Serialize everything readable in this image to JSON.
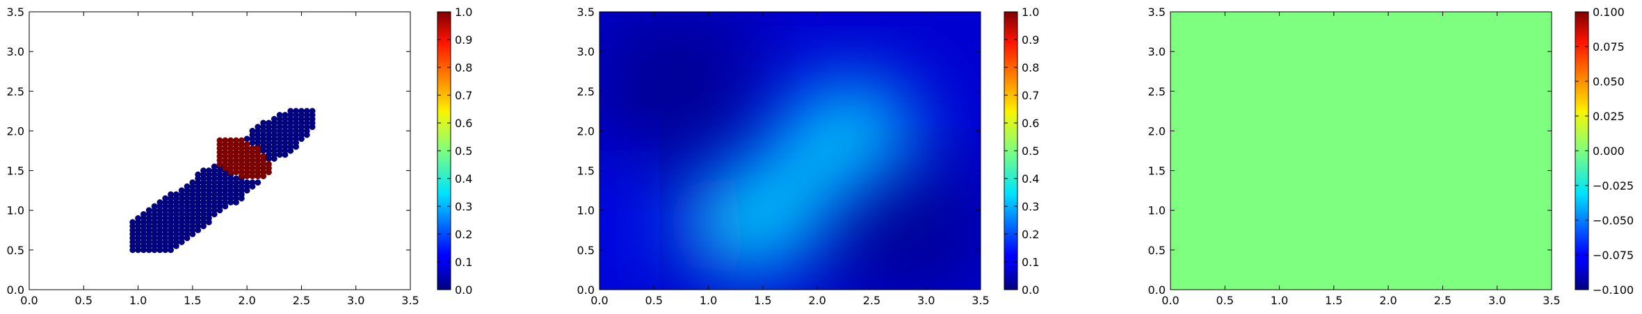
{
  "chart_data": [
    {
      "type": "scatter",
      "xlim": [
        0,
        3.5
      ],
      "ylim": [
        0,
        3.5
      ],
      "xticks": [
        "0.0",
        "0.5",
        "1.0",
        "1.5",
        "2.0",
        "2.5",
        "3.0",
        "3.5"
      ],
      "yticks": [
        "0.0",
        "0.5",
        "1.0",
        "1.5",
        "2.0",
        "2.5",
        "3.0",
        "3.5"
      ],
      "colorbar": {
        "range": [
          0,
          1
        ],
        "ticks": [
          "0.0",
          "0.1",
          "0.2",
          "0.3",
          "0.4",
          "0.5",
          "0.6",
          "0.7",
          "0.8",
          "0.9",
          "1.0"
        ],
        "colormap": "jet"
      },
      "groups": [
        {
          "value": 0.0,
          "description": "blue points",
          "region": {
            "x": [
              0.95,
              2.6
            ],
            "y": [
              0.5,
              2.35
            ],
            "shape": "elongated diagonal band"
          }
        },
        {
          "value": 1.0,
          "description": "red points",
          "region": {
            "x": [
              1.7,
              2.25
            ],
            "y": [
              1.4,
              1.9
            ],
            "shape": "small cluster"
          }
        }
      ]
    },
    {
      "type": "heatmap",
      "xlim": [
        0,
        3.5
      ],
      "ylim": [
        0,
        3.5
      ],
      "xticks": [
        "0.0",
        "0.5",
        "1.0",
        "1.5",
        "2.0",
        "2.5",
        "3.0",
        "3.5"
      ],
      "yticks": [
        "0.0",
        "0.5",
        "1.0",
        "1.5",
        "2.0",
        "2.5",
        "3.0",
        "3.5"
      ],
      "colorbar": {
        "range": [
          0,
          1
        ],
        "ticks": [
          "0.0",
          "0.1",
          "0.2",
          "0.3",
          "0.4",
          "0.5",
          "0.6",
          "0.7",
          "0.8",
          "0.9",
          "1.0"
        ],
        "colormap": "jet"
      },
      "peaks": [
        {
          "x": 1.4,
          "y": 0.85,
          "value": 0.4
        },
        {
          "x": 2.3,
          "y": 2.0,
          "value": 0.33
        }
      ],
      "background_value": 0.08
    },
    {
      "type": "heatmap",
      "xlim": [
        0,
        3.5
      ],
      "ylim": [
        0,
        3.5
      ],
      "xticks": [
        "0.0",
        "0.5",
        "1.0",
        "1.5",
        "2.0",
        "2.5",
        "3.0",
        "3.5"
      ],
      "yticks": [
        "0.0",
        "0.5",
        "1.0",
        "1.5",
        "2.0",
        "2.5",
        "3.0",
        "3.5"
      ],
      "colorbar": {
        "range": [
          -0.1,
          0.1
        ],
        "ticks": [
          "−0.100",
          "−0.075",
          "−0.050",
          "−0.025",
          "0.000",
          "0.025",
          "0.050",
          "0.075",
          "0.100"
        ],
        "colormap": "jet"
      },
      "constant_value": 0.0
    }
  ],
  "colors": {
    "uniform_fill": "#7fff7f",
    "dark_blue": "#00008f",
    "dark_red": "#800000"
  }
}
